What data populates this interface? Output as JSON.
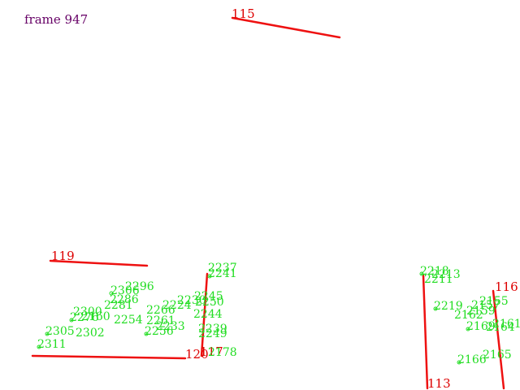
{
  "frame_label": "frame 947",
  "colors": {
    "segment": "#ee1111",
    "segment_label": "#dd0000",
    "point_label": "#22dd22",
    "frame_label": "#660066"
  },
  "segments": [
    {
      "label": "115"
    },
    {
      "label": "119"
    },
    {
      "label": "120"
    },
    {
      "label": "117"
    },
    {
      "label": "113"
    },
    {
      "label": "116"
    }
  ],
  "points": [
    "2237",
    "2241",
    "2245",
    "2250",
    "2244",
    "2239",
    "2249",
    "2230",
    "2306",
    "2296",
    "2300",
    "2302",
    "2305",
    "2311",
    "2286",
    "2281",
    "2276",
    "2266",
    "2261",
    "2256",
    "2254",
    "2233",
    "2224",
    "2219",
    "2211",
    "2218",
    "2213",
    "2157",
    "2159",
    "2162",
    "2161",
    "2164",
    "2165",
    "2166",
    "2169",
    "2155",
    "2160",
    "2178"
  ]
}
